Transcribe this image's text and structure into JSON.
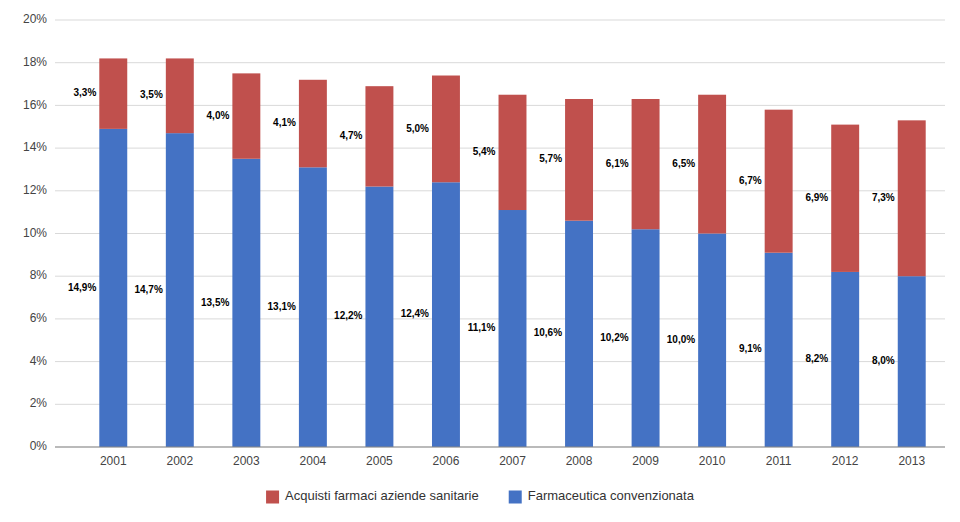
{
  "chart_data": {
    "type": "bar",
    "stacked": true,
    "categories": [
      "2001",
      "2002",
      "2003",
      "2004",
      "2005",
      "2006",
      "2007",
      "2008",
      "2009",
      "2010",
      "2011",
      "2012",
      "2013"
    ],
    "series": [
      {
        "name": "Farmaceutica convenzionata",
        "color": "#4472C4",
        "values": [
          14.9,
          14.7,
          13.5,
          13.1,
          12.2,
          12.4,
          11.1,
          10.6,
          10.2,
          10.0,
          9.1,
          8.2,
          8.0
        ],
        "value_labels": [
          "14,9%",
          "14,7%",
          "13,5%",
          "13,1%",
          "12,2%",
          "12,4%",
          "11,1%",
          "10,6%",
          "10,2%",
          "10,0%",
          "9,1%",
          "8,2%",
          "8,0%"
        ]
      },
      {
        "name": "Acquisti farmaci aziende sanitarie",
        "color": "#C0504D",
        "values": [
          3.3,
          3.5,
          4.0,
          4.1,
          4.7,
          5.0,
          5.4,
          5.7,
          6.1,
          6.5,
          6.7,
          6.9,
          7.3
        ],
        "value_labels": [
          "3,3%",
          "3,5%",
          "4,0%",
          "4,1%",
          "4,7%",
          "5,0%",
          "5,4%",
          "5,7%",
          "6,1%",
          "6,5%",
          "6,7%",
          "6,9%",
          "7,3%"
        ]
      }
    ],
    "ylim": [
      0,
      20
    ],
    "yticks": [
      {
        "value": 0,
        "label": "0%"
      },
      {
        "value": 2,
        "label": "2%"
      },
      {
        "value": 4,
        "label": "4%"
      },
      {
        "value": 6,
        "label": "6%"
      },
      {
        "value": 8,
        "label": "8%"
      },
      {
        "value": 10,
        "label": "10%"
      },
      {
        "value": 12,
        "label": "12%"
      },
      {
        "value": 14,
        "label": "14%"
      },
      {
        "value": 16,
        "label": "16%"
      },
      {
        "value": 18,
        "label": "18%"
      },
      {
        "value": 20,
        "label": "20%"
      }
    ],
    "grid": true,
    "legend": "bottom",
    "data_labels": true
  }
}
